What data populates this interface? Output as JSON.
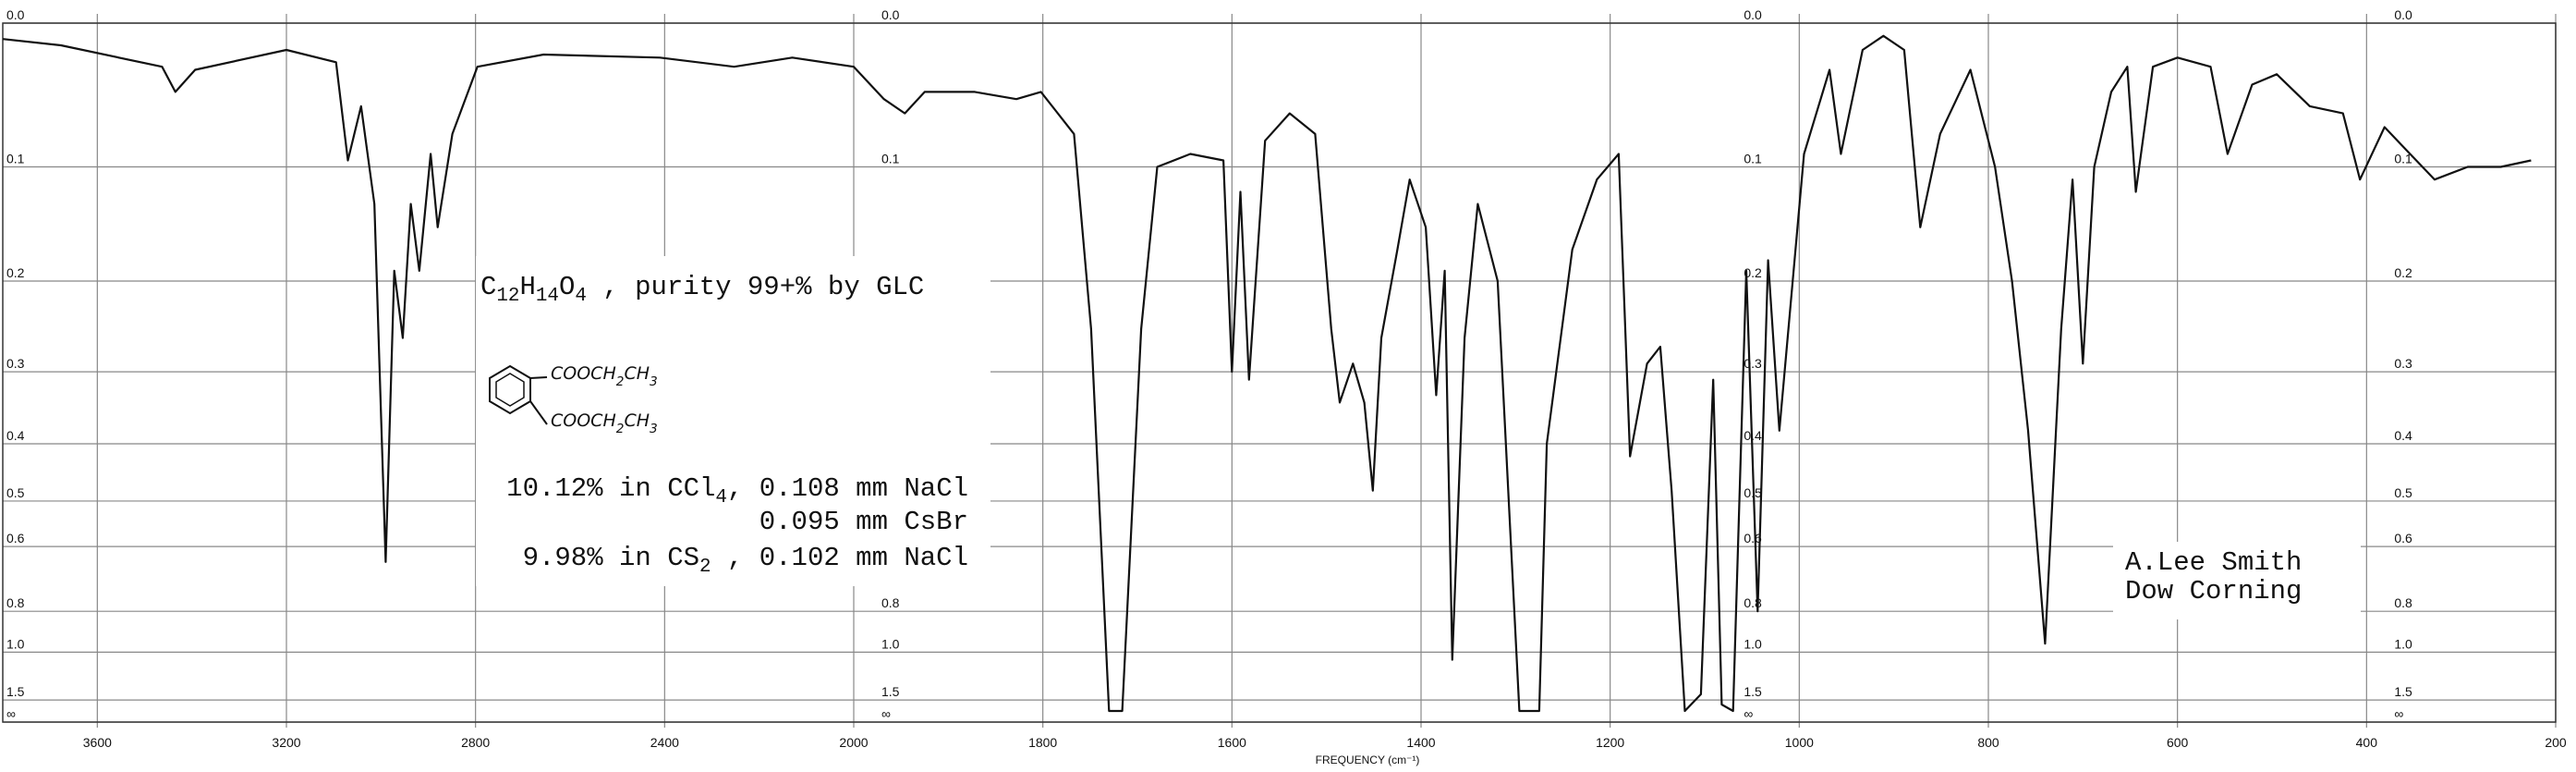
{
  "chart_data": {
    "type": "line",
    "yscale": "absorbance",
    "xlim": [
      3800,
      200
    ],
    "x_scale_break": 2000,
    "x_scale_ratio": 2,
    "xticks": [
      3600,
      3200,
      2800,
      2400,
      2000,
      1800,
      1600,
      1400,
      1200,
      1000,
      800,
      600,
      400,
      200
    ],
    "ylim": [
      0,
      null
    ],
    "yticks": [
      {
        "value": 0,
        "label": "0.0"
      },
      0.1,
      0.2,
      0.3,
      0.4,
      0.5,
      0.6,
      0.8,
      {
        "value": 1,
        "label": "1.0"
      },
      1.5,
      {
        "value": null,
        "label": "∞"
      }
    ],
    "grid": true,
    "x_label": "FREQUENCY (cm⁻¹)",
    "x": [
      3800,
      3677,
      3463,
      3435,
      3393,
      3200,
      3095,
      3070,
      3042,
      3014,
      2990,
      2972,
      2954,
      2937,
      2919,
      2895,
      2880,
      2849,
      2796,
      2656,
      2410,
      2253,
      2130,
      2000,
      1968,
      1946,
      1925,
      1872,
      1828,
      1802,
      1767,
      1749,
      1730,
      1716,
      1696,
      1679,
      1644,
      1609,
      1600,
      1591,
      1582,
      1565,
      1539,
      1512,
      1495,
      1486,
      1472,
      1460,
      1451,
      1442,
      1425,
      1412,
      1395,
      1384,
      1375,
      1367,
      1354,
      1340,
      1319,
      1296,
      1275,
      1267,
      1240,
      1214,
      1191,
      1179,
      1161,
      1147,
      1135,
      1121,
      1104,
      1091,
      1082,
      1070,
      1056,
      1044,
      1033,
      1021,
      995,
      968,
      956,
      933,
      911,
      889,
      872,
      851,
      819,
      793,
      775,
      758,
      740,
      723,
      711,
      700,
      688,
      670,
      653,
      644,
      626,
      600,
      565,
      547,
      521,
      495,
      460,
      425,
      407,
      381,
      354,
      328,
      293,
      258,
      226
    ],
    "series": [
      {
        "color": "#111111",
        "values": [
          0.01,
          0.014,
          0.028,
          0.045,
          0.03,
          0.017,
          0.025,
          0.095,
          0.055,
          0.13,
          0.64,
          0.19,
          0.26,
          0.13,
          0.19,
          0.09,
          0.15,
          0.075,
          0.028,
          0.02,
          0.022,
          0.028,
          0.022,
          0.028,
          0.05,
          0.06,
          0.045,
          0.045,
          0.05,
          0.045,
          0.075,
          0.25,
          1.8,
          1.8,
          0.25,
          0.1,
          0.09,
          0.095,
          0.3,
          0.12,
          0.31,
          0.08,
          0.06,
          0.075,
          0.25,
          0.34,
          0.29,
          0.34,
          0.48,
          0.26,
          0.17,
          0.11,
          0.15,
          0.33,
          0.19,
          1.05,
          0.26,
          0.13,
          0.2,
          1.8,
          1.8,
          0.4,
          0.17,
          0.11,
          0.09,
          0.42,
          0.29,
          0.27,
          0.48,
          1.8,
          1.4,
          0.31,
          1.6,
          1.8,
          0.19,
          0.8,
          0.18,
          0.38,
          0.09,
          0.03,
          0.09,
          0.017,
          0.008,
          0.017,
          0.15,
          0.075,
          0.03,
          0.1,
          0.2,
          0.38,
          0.95,
          0.25,
          0.11,
          0.29,
          0.1,
          0.045,
          0.028,
          0.12,
          0.028,
          0.022,
          0.028,
          0.09,
          0.04,
          0.033,
          0.055,
          0.06,
          0.11,
          0.07,
          0.09,
          0.11,
          0.1,
          0.1,
          0.095
        ]
      }
    ],
    "formula_note": [
      {
        "text": "C"
      },
      {
        "text": "12",
        "sub": true
      },
      {
        "text": "H"
      },
      {
        "text": "14",
        "sub": true
      },
      {
        "text": "O"
      },
      {
        "text": "4",
        "sub": true
      },
      {
        "text": " , purity 99+% by GLC"
      }
    ],
    "structure_labels": [
      [
        {
          "text": "COOCH"
        },
        {
          "text": "2",
          "sub": true
        },
        {
          "text": "CH"
        },
        {
          "text": "3",
          "sub": true
        }
      ],
      [
        {
          "text": "COOCH"
        },
        {
          "text": "2",
          "sub": true
        },
        {
          "text": "CH"
        },
        {
          "text": "3",
          "sub": true
        }
      ]
    ],
    "sample_notes": [
      [
        {
          "text": "10.12% in CCl"
        },
        {
          "text": "4",
          "sub": true
        },
        {
          "text": ", 0.108 mm NaCl"
        }
      ],
      [
        {
          "text": "0.095 mm CsBr"
        }
      ],
      [
        {
          "text": "9.98% in CS"
        },
        {
          "text": "2",
          "sub": true
        },
        {
          "text": " , 0.102 mm NaCl"
        }
      ]
    ],
    "signature": [
      "A.Lee Smith",
      "Dow Corning"
    ]
  }
}
